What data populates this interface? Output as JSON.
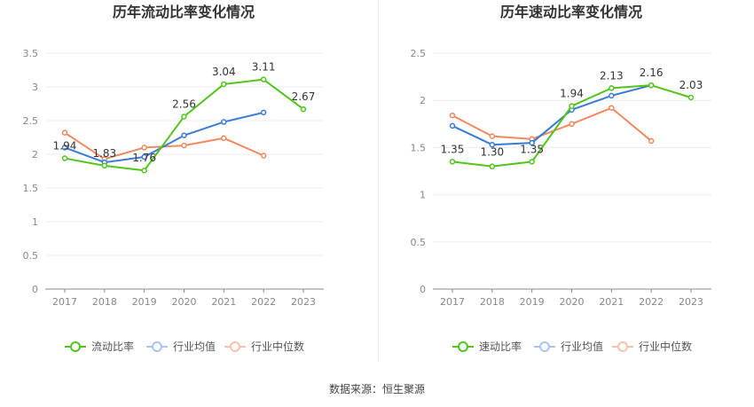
{
  "source_text": "数据来源：恒生聚源",
  "chart_data": [
    {
      "type": "line",
      "title": "历年流动比率变化情况",
      "categories": [
        "2017",
        "2018",
        "2019",
        "2020",
        "2021",
        "2022",
        "2023"
      ],
      "yticks": [
        "0",
        "0.5",
        "1",
        "1.5",
        "2",
        "2.5",
        "3",
        "3.5"
      ],
      "ylim": [
        0,
        3.5
      ],
      "grid": true,
      "legend_position": "bottom",
      "series": [
        {
          "name": "流动比率",
          "color": "#52c41a",
          "values": [
            1.94,
            1.83,
            1.76,
            2.56,
            3.04,
            3.11,
            2.67
          ],
          "labels": [
            "1.94",
            "1.83",
            "1.76",
            "2.56",
            "3.04",
            "3.11",
            "2.67"
          ]
        },
        {
          "name": "行业均值",
          "color": "#3a7bd5",
          "values": [
            2.1,
            1.88,
            1.96,
            2.28,
            2.48,
            2.62,
            null
          ]
        },
        {
          "name": "行业中位数",
          "color": "#f0895f",
          "values": [
            2.32,
            1.93,
            2.1,
            2.13,
            2.24,
            1.98,
            null
          ]
        }
      ]
    },
    {
      "type": "line",
      "title": "历年速动比率变化情况",
      "categories": [
        "2017",
        "2018",
        "2019",
        "2020",
        "2021",
        "2022",
        "2023"
      ],
      "yticks": [
        "0",
        "0.5",
        "1",
        "1.5",
        "2",
        "2.5"
      ],
      "ylim": [
        0,
        2.5
      ],
      "grid": true,
      "legend_position": "bottom",
      "series": [
        {
          "name": "速动比率",
          "color": "#52c41a",
          "values": [
            1.35,
            1.3,
            1.35,
            1.94,
            2.13,
            2.16,
            2.03
          ],
          "labels": [
            "1.35",
            "1.30",
            "1.35",
            "1.94",
            "2.13",
            "2.16",
            "2.03"
          ]
        },
        {
          "name": "行业均值",
          "color": "#3a7bd5",
          "values": [
            1.73,
            1.53,
            1.55,
            1.9,
            2.05,
            2.16,
            null
          ]
        },
        {
          "name": "行业中位数",
          "color": "#f0895f",
          "values": [
            1.84,
            1.62,
            1.59,
            1.75,
            1.92,
            1.57,
            null
          ]
        }
      ]
    }
  ]
}
